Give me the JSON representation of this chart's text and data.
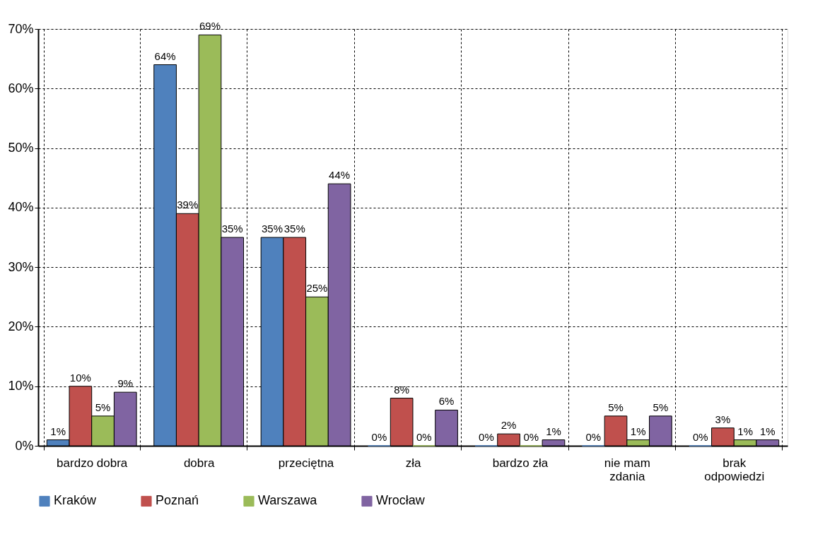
{
  "chart_data": {
    "type": "bar",
    "categories": [
      "bardzo dobra",
      "dobra",
      "przeciętna",
      "zła",
      "bardzo zła",
      "nie mam zdania",
      "brak odpowiedzi"
    ],
    "series": [
      {
        "name": "Kraków",
        "color": "#4f81bd",
        "values": [
          1,
          64,
          35,
          0,
          0,
          0,
          0
        ],
        "value_labels": [
          "1%",
          "64%",
          "35%",
          "0%",
          "0%",
          "0%",
          "0%"
        ]
      },
      {
        "name": "Poznań",
        "color": "#c0504d",
        "values": [
          10,
          39,
          35,
          8,
          2,
          5,
          3
        ],
        "value_labels": [
          "10%",
          "39%",
          "35%",
          "8%",
          "2%",
          "5%",
          "3%"
        ]
      },
      {
        "name": "Warszawa",
        "color": "#9bbb59",
        "values": [
          5,
          69,
          25,
          0,
          0,
          1,
          1
        ],
        "value_labels": [
          "5%",
          "69%",
          "25%",
          "0%",
          "0%",
          "1%",
          "1%"
        ]
      },
      {
        "name": "Wrocław",
        "color": "#8064a2",
        "values": [
          9,
          35,
          44,
          6,
          1,
          5,
          1
        ],
        "value_labels": [
          "9%",
          "35%",
          "44%",
          "6%",
          "1%",
          "5%",
          "1%"
        ]
      }
    ],
    "ylim": [
      0,
      70
    ],
    "yticks": [
      {
        "value": 0,
        "label": "0%"
      },
      {
        "value": 10,
        "label": "10%"
      },
      {
        "value": 20,
        "label": "20%"
      },
      {
        "value": 30,
        "label": "30%"
      },
      {
        "value": 40,
        "label": "40%"
      },
      {
        "value": 50,
        "label": "50%"
      },
      {
        "value": 60,
        "label": "60%"
      },
      {
        "value": 70,
        "label": "70%"
      }
    ],
    "grid": true,
    "legend": "bottom"
  }
}
